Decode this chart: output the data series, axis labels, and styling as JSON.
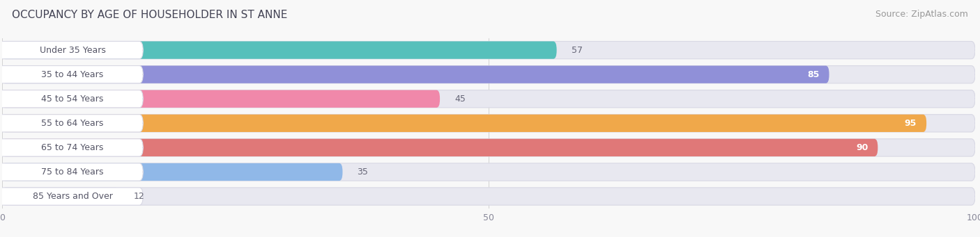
{
  "title": "OCCUPANCY BY AGE OF HOUSEHOLDER IN ST ANNE",
  "source": "Source: ZipAtlas.com",
  "categories": [
    "Under 35 Years",
    "35 to 44 Years",
    "45 to 54 Years",
    "55 to 64 Years",
    "65 to 74 Years",
    "75 to 84 Years",
    "85 Years and Over"
  ],
  "values": [
    57,
    85,
    45,
    95,
    90,
    35,
    12
  ],
  "bar_colors": [
    "#56c0bb",
    "#9090d8",
    "#f088aa",
    "#f0a84a",
    "#e07878",
    "#90b8e8",
    "#c8a8d4"
  ],
  "xlim": [
    0,
    100
  ],
  "background_color": "#f8f8f8",
  "bar_bg_color": "#e8e8f0",
  "label_bg_color": "#ffffff",
  "title_fontsize": 11,
  "source_fontsize": 9,
  "label_fontsize": 9,
  "value_fontsize": 9,
  "tick_fontsize": 9,
  "title_color": "#444455",
  "source_color": "#999999",
  "label_color": "#555566",
  "value_color_inside": "#ffffff",
  "value_color_outside": "#666677"
}
